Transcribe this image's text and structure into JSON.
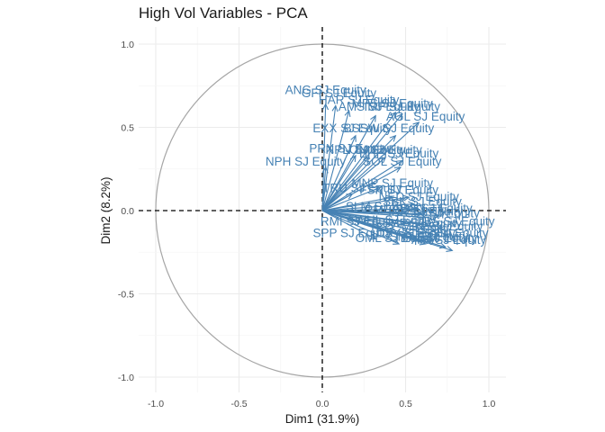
{
  "chart_data": {
    "type": "scatter",
    "title": "High Vol Variables - PCA",
    "xlabel": "Dim1 (31.9%)",
    "ylabel": "Dim2 (8.2%)",
    "xlim": [
      -1.0,
      1.0
    ],
    "ylim": [
      -1.0,
      1.0
    ],
    "xticks": [
      "-1.0",
      "-0.5",
      "0.0",
      "0.5",
      "1.0"
    ],
    "yticks": [
      "-1.0",
      "-0.5",
      "0.0",
      "0.5",
      "1.0"
    ],
    "grid": true,
    "arrow_color": "#4682b4",
    "circle_color": "#a6a6a6",
    "variables": [
      {
        "name": "ANG SJ Equity",
        "x": 0.02,
        "y": 0.64
      },
      {
        "name": "GFI SJ Equity",
        "x": 0.08,
        "y": 0.63
      },
      {
        "name": "HAR SJ Equity",
        "x": 0.16,
        "y": 0.6
      },
      {
        "name": "AMS SJ Equity",
        "x": 0.32,
        "y": 0.57
      },
      {
        "name": "MPS SJ Equity",
        "x": 0.44,
        "y": 0.59
      },
      {
        "name": "IMP SJ Equity",
        "x": 0.48,
        "y": 0.58
      },
      {
        "name": "AGL SJ Equity",
        "x": 0.58,
        "y": 0.53
      },
      {
        "name": "EXX SJ Equity",
        "x": 0.2,
        "y": 0.45
      },
      {
        "name": "BSSW SJ Equity",
        "x": 0.44,
        "y": 0.45
      },
      {
        "name": "PRX SJ Equity",
        "x": 0.2,
        "y": 0.33
      },
      {
        "name": "NPN SJ Equity",
        "x": 0.28,
        "y": 0.32
      },
      {
        "name": "LON SJ Equity",
        "x": 0.38,
        "y": 0.32
      },
      {
        "name": "BHP SJ Equity",
        "x": 0.48,
        "y": 0.3
      },
      {
        "name": "NPH SJ Equity",
        "x": 0.02,
        "y": 0.26
      },
      {
        "name": "SOL SJ Equity",
        "x": 0.47,
        "y": 0.26
      },
      {
        "name": "MNP SJ Equity",
        "x": 0.35,
        "y": 0.14
      },
      {
        "name": "TRU SJ Equity",
        "x": 0.18,
        "y": 0.1
      },
      {
        "name": "FSR SJ Equity",
        "x": 0.42,
        "y": 0.08
      },
      {
        "name": "NED SJ Equity",
        "x": 0.52,
        "y": 0.08
      },
      {
        "name": "SBK SJ Equity",
        "x": 0.55,
        "y": 0.04
      },
      {
        "name": "ABG SJ Equity",
        "x": 0.56,
        "y": 0.01
      },
      {
        "name": "SLM SJ Equity",
        "x": 0.5,
        "y": -0.01
      },
      {
        "name": "RMH SJ Equity",
        "x": 0.6,
        "y": -0.02
      },
      {
        "name": "INP SJ Equity",
        "x": 0.62,
        "y": -0.04
      },
      {
        "name": "CPI SJ Equity",
        "x": 0.7,
        "y": -0.03
      },
      {
        "name": "WHL SJ Equity",
        "x": 0.54,
        "y": -0.07
      },
      {
        "name": "SHP SJ Equity",
        "x": 0.64,
        "y": -0.09
      },
      {
        "name": "MRP SJ Equity",
        "x": 0.68,
        "y": -0.12
      },
      {
        "name": "TFG SJ Equity",
        "x": 0.7,
        "y": -0.15
      },
      {
        "name": "TBS SJ Equity",
        "x": 0.72,
        "y": -0.1
      },
      {
        "name": "RMI SJ Equity",
        "x": 0.36,
        "y": -0.12
      },
      {
        "name": "SPP SJ Equity",
        "x": 0.32,
        "y": -0.17
      },
      {
        "name": "OML SJ Equity",
        "x": 0.46,
        "y": -0.2
      },
      {
        "name": "DSY SJ Equity",
        "x": 0.58,
        "y": -0.18
      },
      {
        "name": "SNT SJ Equity",
        "x": 0.62,
        "y": -0.2
      },
      {
        "name": "BAT SJ Equity",
        "x": 0.74,
        "y": -0.22
      },
      {
        "name": "ARI SJ Equity",
        "x": 0.78,
        "y": -0.24
      },
      {
        "name": "TKG SJ Equity",
        "x": 0.66,
        "y": -0.18
      }
    ],
    "label_positions": [
      {
        "name": "ANG SJ Equity",
        "lx": 0.02,
        "ly": 0.7
      },
      {
        "name": "GFI SJ Equity",
        "lx": 0.1,
        "ly": 0.68
      },
      {
        "name": "HAR SJ Equity",
        "lx": 0.22,
        "ly": 0.64
      },
      {
        "name": "AMS SJ Equity",
        "lx": 0.34,
        "ly": 0.6
      },
      {
        "name": "MPS SJ Equity",
        "lx": 0.42,
        "ly": 0.62
      },
      {
        "name": "IMP SJ Equity",
        "lx": 0.48,
        "ly": 0.6
      },
      {
        "name": "AGL SJ Equity",
        "lx": 0.62,
        "ly": 0.54
      },
      {
        "name": "EXX SJ Equity",
        "lx": 0.18,
        "ly": 0.47
      },
      {
        "name": "BSSW SJ Equity",
        "lx": 0.4,
        "ly": 0.47
      },
      {
        "name": "PRX SJ Equity",
        "lx": 0.16,
        "ly": 0.35
      },
      {
        "name": "NPN SJ Equity",
        "lx": 0.26,
        "ly": 0.34
      },
      {
        "name": "LON SJ Equity",
        "lx": 0.36,
        "ly": 0.34
      },
      {
        "name": "BHP SJ Equity",
        "lx": 0.46,
        "ly": 0.32
      },
      {
        "name": "NPH SJ Equity",
        "lx": -0.1,
        "ly": 0.27
      },
      {
        "name": "SOL SJ Equity",
        "lx": 0.48,
        "ly": 0.27
      },
      {
        "name": "MNP SJ Equity",
        "lx": 0.42,
        "ly": 0.14
      },
      {
        "name": "TRU SJ Equity",
        "lx": 0.24,
        "ly": 0.11
      },
      {
        "name": "FSR SJ Equity",
        "lx": 0.46,
        "ly": 0.1
      },
      {
        "name": "NED SJ Equity",
        "lx": 0.58,
        "ly": 0.06
      },
      {
        "name": "SBK SJ Equity",
        "lx": 0.6,
        "ly": 0.03
      },
      {
        "name": "ABG SJ Equity",
        "lx": 0.66,
        "ly": -0.01
      },
      {
        "name": "SLM SJ Equity",
        "lx": 0.38,
        "ly": 0.0
      },
      {
        "name": "RMH SJ Equity",
        "lx": 0.5,
        "ly": -0.02
      },
      {
        "name": "INP SJ Equity",
        "lx": 0.62,
        "ly": -0.03
      },
      {
        "name": "CPI SJ Equity",
        "lx": 0.72,
        "ly": -0.04
      },
      {
        "name": "WHL SJ Equity",
        "lx": 0.44,
        "ly": -0.08
      },
      {
        "name": "SHP SJ Equity",
        "lx": 0.6,
        "ly": -0.1
      },
      {
        "name": "MRP SJ Equity",
        "lx": 0.72,
        "ly": -0.12
      },
      {
        "name": "TFG SJ Equity",
        "lx": 0.76,
        "ly": -0.16
      },
      {
        "name": "TBS SJ Equity",
        "lx": 0.8,
        "ly": -0.09
      },
      {
        "name": "RMI SJ Equity",
        "lx": 0.22,
        "ly": -0.09
      },
      {
        "name": "SPP SJ Equity",
        "lx": 0.18,
        "ly": -0.16
      },
      {
        "name": "OML SJ Equity",
        "lx": 0.44,
        "ly": -0.19
      },
      {
        "name": "DSY SJ Equity",
        "lx": 0.56,
        "ly": -0.16
      },
      {
        "name": "SNT SJ Equity",
        "lx": 0.64,
        "ly": -0.18
      },
      {
        "name": "BAT SJ Equity",
        "lx": 0.7,
        "ly": -0.19
      },
      {
        "name": "ARI SJ Equity",
        "lx": 0.76,
        "ly": -0.2
      },
      {
        "name": "TKG SJ Equity",
        "lx": 0.52,
        "ly": -0.13
      }
    ]
  }
}
